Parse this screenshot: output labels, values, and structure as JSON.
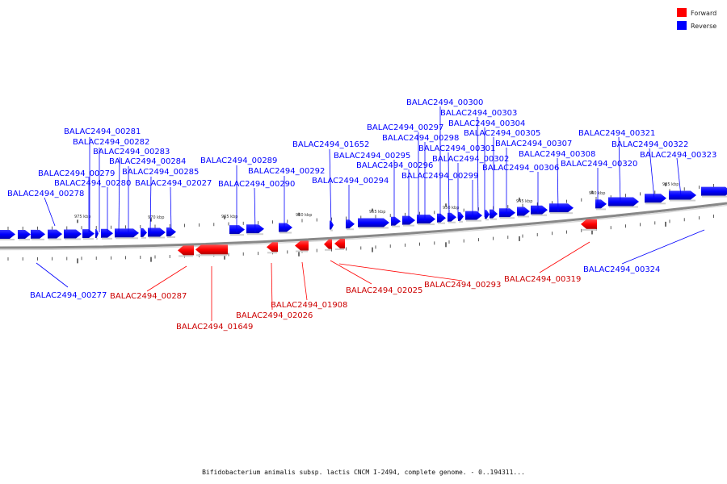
{
  "legend": {
    "forward": {
      "label": "Forward",
      "color": "#ff0000"
    },
    "reverse": {
      "label": "Reverse",
      "color": "#0000ff"
    }
  },
  "caption": "Bifidobacterium animalis subsp. lactis CNCM I-2494, complete genome. - 0..194311...",
  "scale_ticks": [
    "975 kbp",
    "970 kbp",
    "965 kbp",
    "960 kbp",
    "955 kbp",
    "950 kbp",
    "945 kbp",
    "940 kbp",
    "935 kbp"
  ],
  "reverse_genes": [
    "BALAC2494_00281",
    "BALAC2494_00282",
    "BALAC2494_00283",
    "BALAC2494_00284",
    "BALAC2494_00285",
    "BALAC2494_02027",
    "BALAC2494_00279",
    "BALAC2494_00280",
    "BALAC2494_00278",
    "BALAC2494_00289",
    "BALAC2494_00292",
    "BALAC2494_00290",
    "BALAC2494_01652",
    "BALAC2494_00294",
    "BALAC2494_00295",
    "BALAC2494_00296",
    "BALAC2494_00297",
    "BALAC2494_00298",
    "BALAC2494_00300",
    "BALAC2494_00303",
    "BALAC2494_00304",
    "BALAC2494_00305",
    "BALAC2494_00301",
    "BALAC2494_00302",
    "BALAC2494_00299",
    "BALAC2494_00307",
    "BALAC2494_00308",
    "BALAC2494_00306",
    "BALAC2494_00320",
    "BALAC2494_00321",
    "BALAC2494_00322",
    "BALAC2494_00323",
    "BALAC2494_00277",
    "BALAC2494_00324"
  ],
  "forward_genes": [
    "BALAC2494_00287",
    "BALAC2494_01649",
    "BALAC2494_01908",
    "BALAC2494_02026",
    "BALAC2494_02025",
    "BALAC2494_00293",
    "BALAC2494_00319"
  ]
}
